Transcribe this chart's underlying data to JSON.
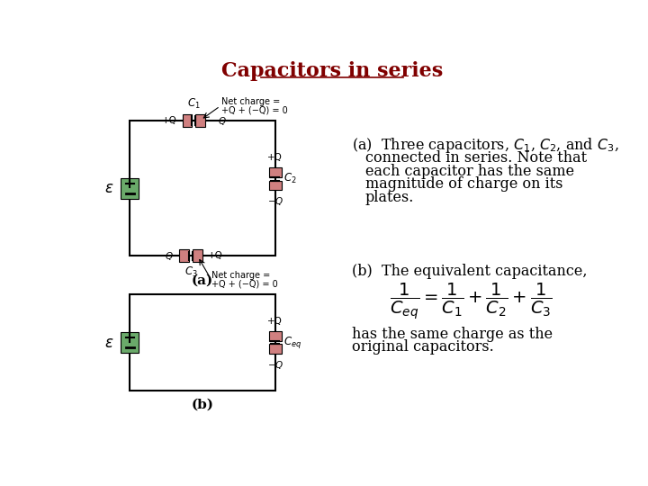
{
  "title": "Capacitors in series",
  "title_color": "#800000",
  "title_fontsize": 16,
  "bg_color": "#ffffff",
  "green_color": "#6aaa6a",
  "red_color": "#d08080",
  "annotation_a": "(a)",
  "annotation_b": "(b)",
  "text_a_line1": "(a)  Three capacitors, $C_1$, $C_2$, and $C_3$,",
  "text_a_line2": "connected in series. Note that",
  "text_a_line3": "each capacitor has the same",
  "text_a_line4": "magnitude of charge on its",
  "text_a_line5": "plates.",
  "text_b_line1": "(b)  The equivalent capacitance,",
  "text_b_formula": "$\\frac{1}{C_{eq}} = \\frac{1}{C_1} + \\frac{1}{C_2} + \\frac{1}{C_3}$",
  "text_b_line2": "has the same charge as the",
  "text_b_line3": "original capacitors.",
  "net_charge_line1": "Net charge =",
  "net_charge_line2": "+Q + (−Q) = 0"
}
